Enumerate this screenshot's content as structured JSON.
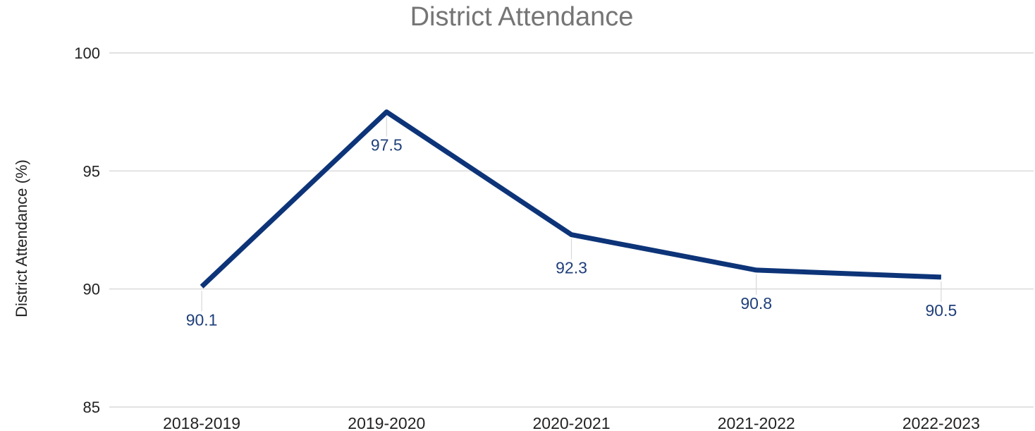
{
  "chart_data": {
    "type": "line",
    "title": "District Attendance",
    "xlabel": "",
    "ylabel": "District Attendance (%)",
    "categories": [
      "2018-2019",
      "2019-2020",
      "2020-2021",
      "2021-2022",
      "2022-2023"
    ],
    "series": [
      {
        "values": [
          90.1,
          97.5,
          92.3,
          90.8,
          90.5
        ],
        "color": "#0d3478"
      }
    ],
    "data_labels": [
      "90.1",
      "97.5",
      "92.3",
      "90.8",
      "90.5"
    ],
    "yticks": [
      "85",
      "90",
      "95",
      "100"
    ],
    "ylim": [
      85,
      100
    ],
    "grid": true,
    "legend": "none"
  }
}
